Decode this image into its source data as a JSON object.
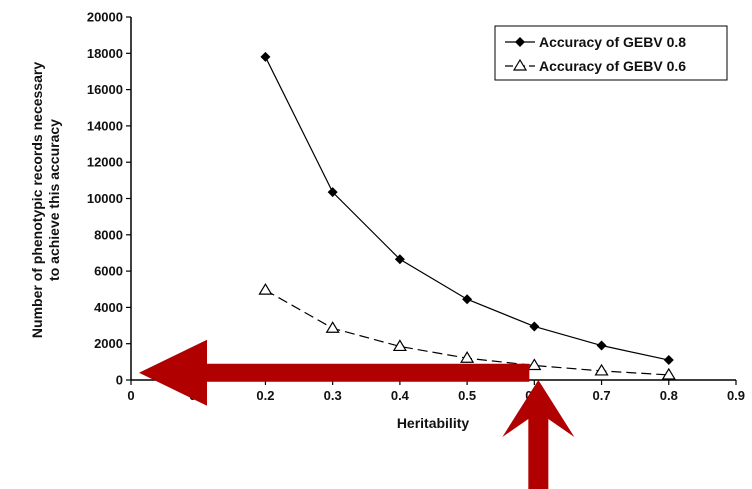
{
  "chart_data": {
    "type": "line",
    "xlabel": "Heritability",
    "ylabel": [
      "Number of phenotypic records necessary",
      "to achieve this accuracy"
    ],
    "xlim": [
      0,
      0.9
    ],
    "ylim": [
      0,
      20000
    ],
    "xticks": [
      "0",
      "0.1",
      "0.2",
      "0.3",
      "0.4",
      "0.5",
      "0.6",
      "0.7",
      "0.8",
      "0.9"
    ],
    "yticks": [
      "0",
      "2000",
      "4000",
      "6000",
      "8000",
      "10000",
      "12000",
      "14000",
      "16000",
      "18000",
      "20000"
    ],
    "x": [
      0.2,
      0.3,
      0.4,
      0.5,
      0.6,
      0.7,
      0.8
    ],
    "series": [
      {
        "name": "Accuracy of GEBV 0.8",
        "values": [
          17800,
          10350,
          6650,
          4450,
          2950,
          1900,
          1100
        ],
        "marker": "filled-diamond",
        "line": "solid",
        "color": "#000000"
      },
      {
        "name": "Accuracy of GEBV 0.6",
        "values": [
          4950,
          2850,
          1850,
          1200,
          800,
          500,
          280
        ],
        "marker": "open-triangle",
        "line": "dashed",
        "color": "#000000"
      }
    ],
    "grid": false,
    "legend_position": "top-right"
  },
  "annotations": {
    "arrows": [
      {
        "name": "horizontal-arrow",
        "from": [
          0.6,
          400
        ],
        "to": [
          0.0,
          400
        ],
        "direction": "left"
      },
      {
        "name": "vertical-arrow",
        "from_x": 0.6,
        "direction": "up"
      }
    ],
    "arrow_color": "#b00000"
  }
}
